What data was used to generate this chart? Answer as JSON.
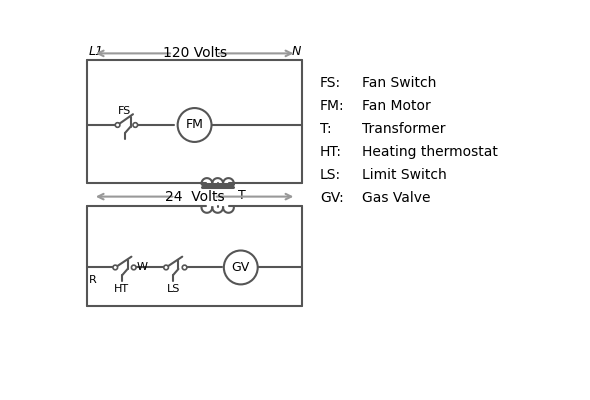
{
  "bg_color": "#ffffff",
  "line_color": "#555555",
  "text_color": "#000000",
  "legend": [
    [
      "FS:  ",
      "Fan Switch"
    ],
    [
      "FM: ",
      "Fan Motor"
    ],
    [
      "T:   ",
      "Transformer"
    ],
    [
      "HT: ",
      "Heating thermostat"
    ],
    [
      "LS:  ",
      "Limit Switch"
    ],
    [
      "GV: ",
      "Gas Valve"
    ]
  ],
  "L1_label": "L1",
  "N_label": "N",
  "volts120_label": "120 Volts",
  "volts24_label": "24  Volts",
  "T_label": "T",
  "R_label": "R",
  "W_label": "W",
  "HT_label": "HT",
  "LS_label": "LS",
  "FS_label": "FS",
  "FM_label": "FM",
  "GV_label": "GV",
  "arrow_color": "#999999",
  "UL": 15,
  "UR": 295,
  "UT": 385,
  "UM": 300,
  "UB": 225,
  "TC": 185,
  "TT": 222,
  "TB": 195,
  "TW": 30,
  "LL": 15,
  "LR": 295,
  "LT": 195,
  "LM": 115,
  "LB": 65
}
